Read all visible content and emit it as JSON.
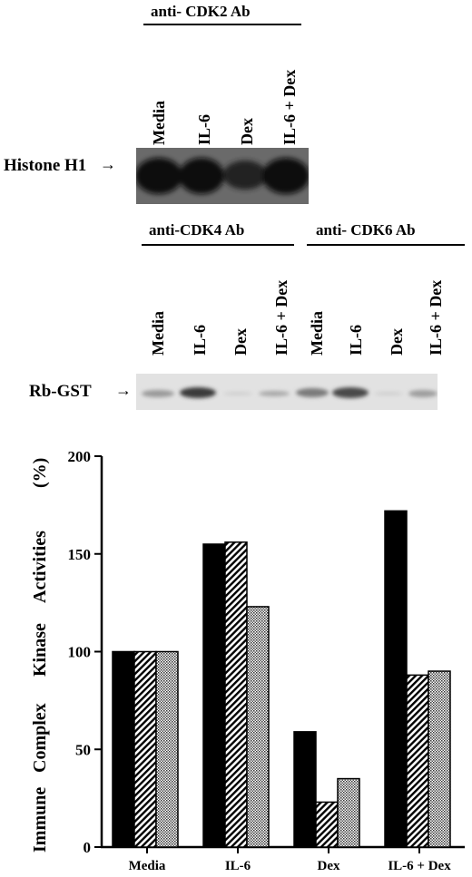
{
  "panel_a": {
    "header": "anti- CDK2 Ab",
    "lanes": [
      "Media",
      "IL-6",
      "Dex",
      "IL-6 + Dex"
    ],
    "row_label": "Histone H1"
  },
  "panel_b": {
    "header_left": "anti-CDK4 Ab",
    "header_right": "anti- CDK6 Ab",
    "lanes": [
      "Media",
      "IL-6",
      "Dex",
      "IL-6 + Dex",
      "Media",
      "IL-6",
      "Dex",
      "IL-6 + Dex"
    ],
    "row_label": "Rb-GST"
  },
  "chart_data": {
    "type": "bar",
    "categories": [
      "Media",
      "IL-6",
      "Dex",
      "IL-6 + Dex"
    ],
    "series": [
      {
        "fill": "solid",
        "values": [
          100,
          155,
          59,
          172
        ]
      },
      {
        "fill": "diagonal-hatch",
        "values": [
          100,
          156,
          23,
          88
        ]
      },
      {
        "fill": "dotted",
        "values": [
          100,
          123,
          35,
          90
        ]
      }
    ],
    "ylabel_words": [
      "Immune",
      "Complex",
      "Kinase",
      "Activities",
      "(%)"
    ],
    "yticks": [
      0,
      50,
      100,
      150,
      200
    ],
    "ylim": [
      0,
      200
    ],
    "xlabel": "",
    "title": ""
  }
}
